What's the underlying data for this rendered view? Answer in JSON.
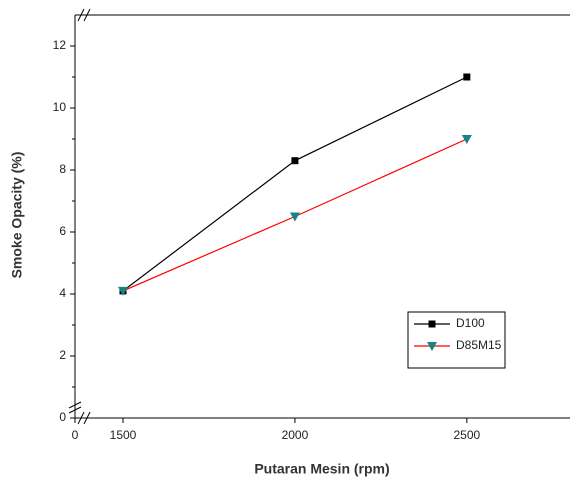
{
  "chart_data": {
    "type": "line",
    "x_label": "Putaran Mesin (rpm)",
    "y_label": "Smoke Opacity (%)",
    "x": [
      1500,
      2000,
      2500
    ],
    "series": [
      {
        "name": "D100",
        "color": "#000000",
        "marker": "square",
        "marker_color": "#000000",
        "values": [
          4.1,
          8.3,
          11
        ]
      },
      {
        "name": "D85M15",
        "color": "#ff0000",
        "marker": "triangle-down",
        "marker_color": "#138585",
        "values": [
          4.1,
          6.5,
          9
        ]
      }
    ],
    "xlim": [
      0,
      2800
    ],
    "xticks": [
      0,
      1500,
      2000,
      2500
    ],
    "ylim": [
      0,
      13
    ],
    "yticks": [
      0,
      2,
      4,
      6,
      8,
      10,
      12
    ],
    "axis_break": true,
    "legend": "lower-right",
    "grid": false
  }
}
